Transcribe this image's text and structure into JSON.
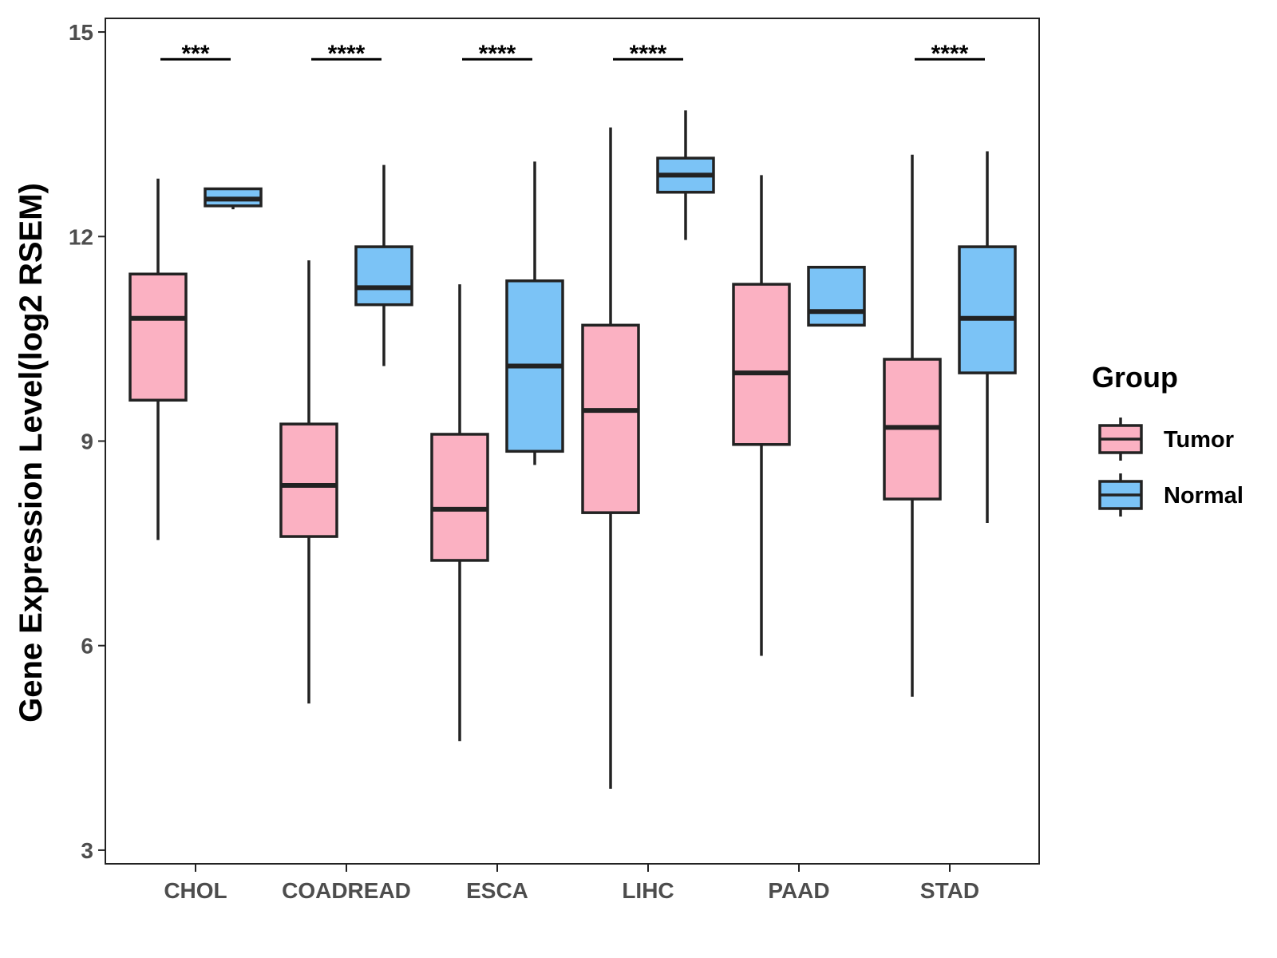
{
  "chart_data": {
    "type": "box",
    "title": "",
    "xlabel": "",
    "ylabel": "Gene Expression Level(log2 RSEM)",
    "ylim": [
      2.8,
      15.2
    ],
    "yticks": [
      3,
      6,
      9,
      12,
      15
    ],
    "grid": false,
    "legend": {
      "title": "Group",
      "position": "right"
    },
    "categories": [
      "CHOL",
      "COADREAD",
      "ESCA",
      "LIHC",
      "PAAD",
      "STAD"
    ],
    "series": [
      {
        "name": "Tumor",
        "color": "#FBB1C2",
        "boxes": [
          {
            "min": 7.55,
            "q1": 9.6,
            "median": 10.8,
            "q3": 11.45,
            "max": 12.85
          },
          {
            "min": 5.15,
            "q1": 7.6,
            "median": 8.35,
            "q3": 9.25,
            "max": 11.65
          },
          {
            "min": 4.6,
            "q1": 7.25,
            "median": 8.0,
            "q3": 9.1,
            "max": 11.3
          },
          {
            "min": 3.9,
            "q1": 7.95,
            "median": 9.45,
            "q3": 10.7,
            "max": 13.6
          },
          {
            "min": 5.85,
            "q1": 8.95,
            "median": 10.0,
            "q3": 11.3,
            "max": 12.9
          },
          {
            "min": 5.25,
            "q1": 8.15,
            "median": 9.2,
            "q3": 10.2,
            "max": 13.2
          }
        ]
      },
      {
        "name": "Normal",
        "color": "#7BC3F6",
        "boxes": [
          {
            "min": 12.4,
            "q1": 12.45,
            "median": 12.55,
            "q3": 12.7,
            "max": 12.7
          },
          {
            "min": 10.1,
            "q1": 11.0,
            "median": 11.25,
            "q3": 11.85,
            "max": 13.05
          },
          {
            "min": 8.65,
            "q1": 8.85,
            "median": 10.1,
            "q3": 11.35,
            "max": 13.1
          },
          {
            "min": 11.95,
            "q1": 12.65,
            "median": 12.9,
            "q3": 13.15,
            "max": 13.85
          },
          {
            "min": 10.7,
            "q1": 10.7,
            "median": 10.9,
            "q3": 11.55,
            "max": 11.55
          },
          {
            "min": 7.8,
            "q1": 10.0,
            "median": 10.8,
            "q3": 11.85,
            "max": 13.25
          }
        ]
      }
    ],
    "significance": [
      "***",
      "****",
      "****",
      "****",
      "",
      "****"
    ]
  }
}
